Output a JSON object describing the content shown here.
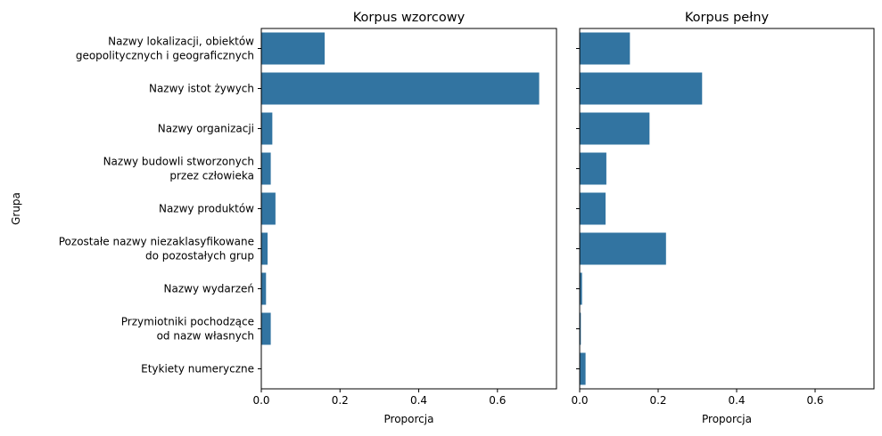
{
  "chart_data": {
    "type": "bar",
    "orientation": "horizontal",
    "ylabel": "Grupa",
    "color": "#3274a1",
    "categories": [
      [
        "Nazwy lokalizacji, obiektów",
        "geopolitycznych i geograficznych"
      ],
      [
        "Nazwy istot żywych"
      ],
      [
        "Nazwy organizacji"
      ],
      [
        "Nazwy budowli stworzonych",
        "przez człowieka"
      ],
      [
        "Nazwy produktów"
      ],
      [
        "Pozostałe nazwy niezaklasyfikowane",
        "do pozostałych grup"
      ],
      [
        "Nazwy wydarzeń"
      ],
      [
        "Przymiotniki pochodzące",
        "od nazw własnych"
      ],
      [
        "Etykiety numeryczne"
      ]
    ],
    "panels": [
      {
        "title": "Korpus wzorcowy",
        "xlabel": "Proporcja",
        "xlim": [
          0,
          0.75
        ],
        "xticks": [
          "0.0",
          "0.2",
          "0.4",
          "0.6"
        ],
        "values": [
          0.161,
          0.706,
          0.028,
          0.024,
          0.036,
          0.016,
          0.012,
          0.024,
          0.0
        ]
      },
      {
        "title": "Korpus pełny",
        "xlabel": "Proporcja",
        "xlim": [
          0,
          0.75
        ],
        "xticks": [
          "0.0",
          "0.2",
          "0.4",
          "0.6"
        ],
        "values": [
          0.128,
          0.312,
          0.178,
          0.068,
          0.066,
          0.22,
          0.006,
          0.003,
          0.015
        ]
      }
    ]
  }
}
